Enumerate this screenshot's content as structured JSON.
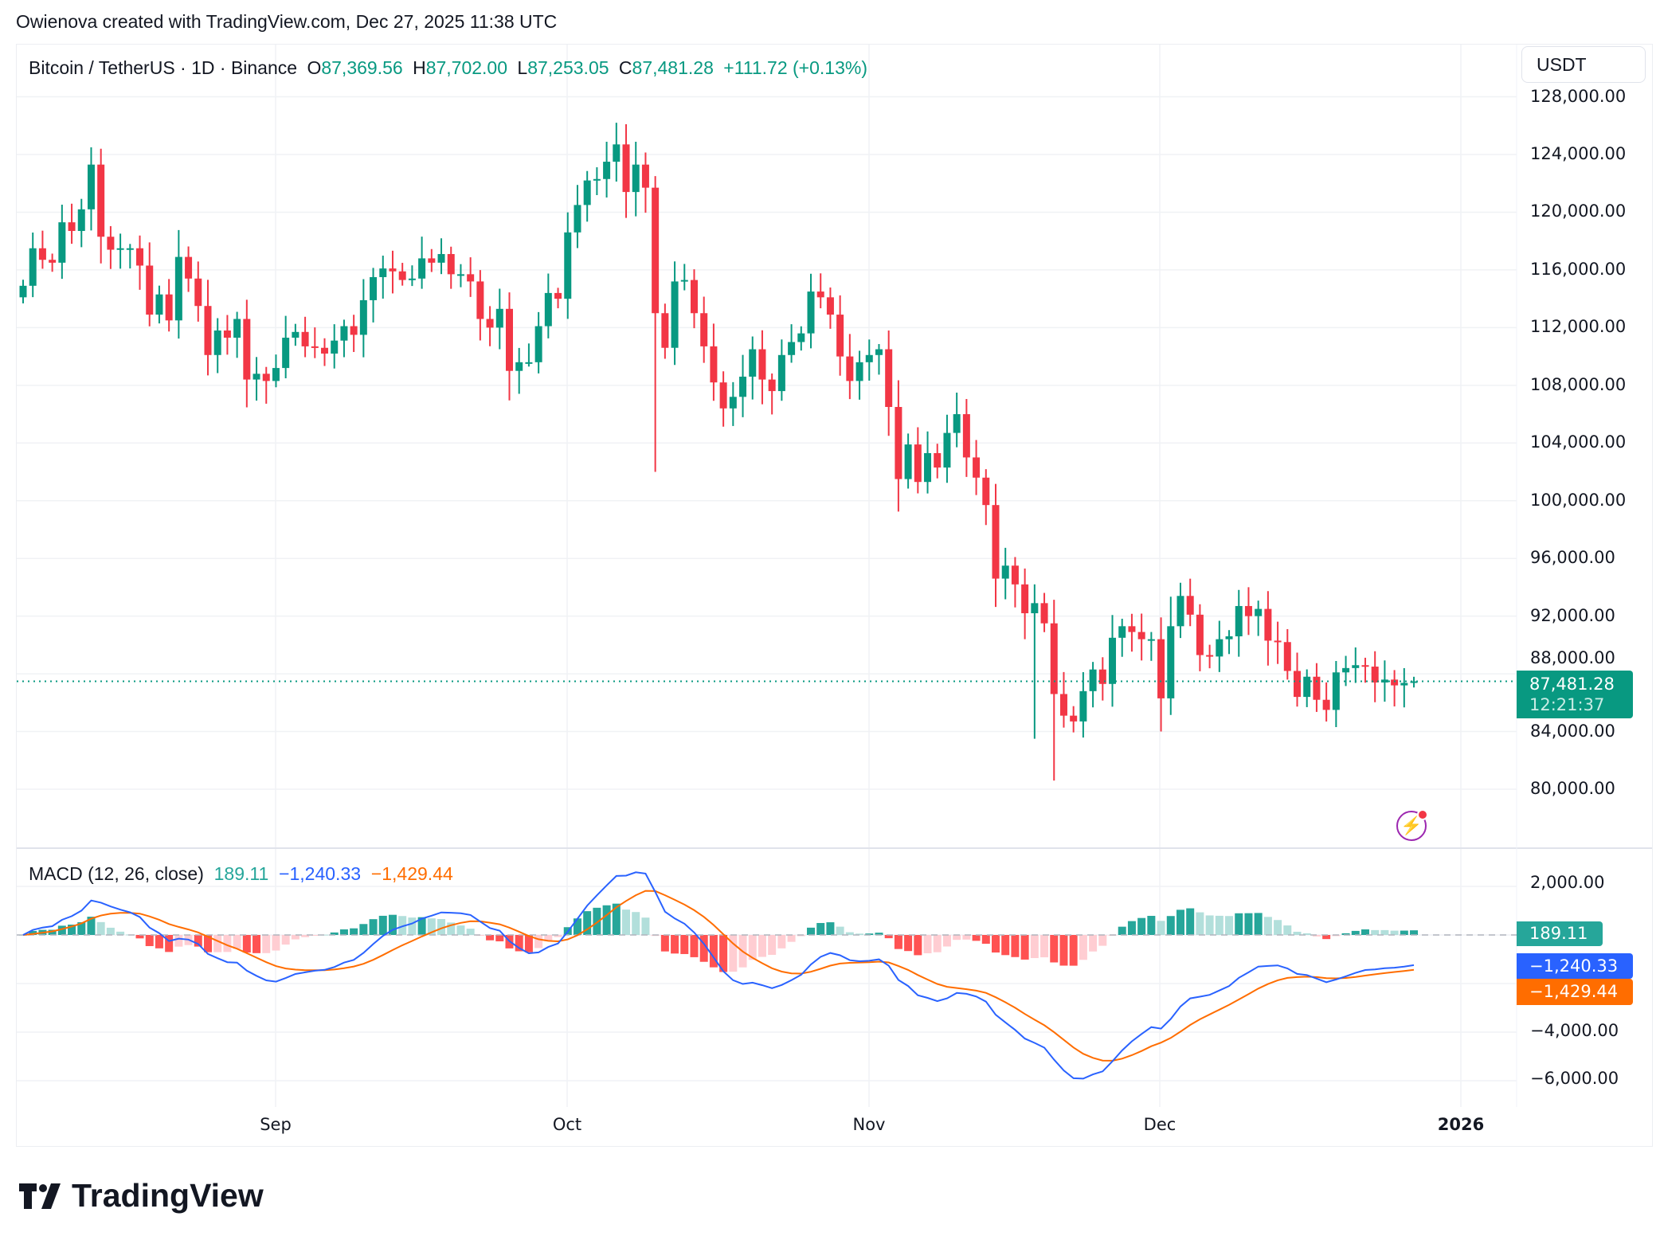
{
  "credit": "Owienova created with TradingView.com, Dec 27, 2025 11:38 UTC",
  "symbol": {
    "title": "Bitcoin / TetherUS · 1D · Binance",
    "o_label": "O",
    "o": "87,369.56",
    "h_label": "H",
    "h": "87,702.00",
    "l_label": "L",
    "l": "87,253.05",
    "c_label": "C",
    "c": "87,481.28",
    "change": "+111.72 (+0.13%)"
  },
  "currency_button": "USDT",
  "price_axis": [
    "128,000.00",
    "124,000.00",
    "120,000.00",
    "116,000.00",
    "112,000.00",
    "108,000.00",
    "104,000.00",
    "100,000.00",
    "96,000.00",
    "92,000.00",
    "88,000.00",
    "84,000.00",
    "80,000.00"
  ],
  "last_price": {
    "value": "87,481.28",
    "countdown": "12:21:37"
  },
  "macd": {
    "title": "MACD (12, 26, close)",
    "hist": "189.11",
    "macd": "−1,240.33",
    "signal": "−1,429.44",
    "axis": [
      "2,000.00",
      "−4,000.00",
      "−6,000.00"
    ]
  },
  "time_axis": [
    "Sep",
    "Oct",
    "Nov",
    "Dec",
    "2026"
  ],
  "logo": "TradingView",
  "colors": {
    "up": "#089981",
    "down": "#F23645",
    "macd": "#2962FF",
    "signal": "#FF6D00",
    "hist_up": "#26A69A",
    "hist_up_weak": "#B2DFDB",
    "hist_down": "#FF5252",
    "hist_down_weak": "#FFCDD2"
  },
  "chart_data": {
    "type": "candlestick",
    "start_date": "2025-08-06",
    "interval": "1D",
    "first_open": 114100,
    "close": [
      114.9,
      117.5,
      116.7,
      116.5,
      119.3,
      118.7,
      120.2,
      123.3,
      118.3,
      117.4,
      117.5,
      117.5,
      116.3,
      112.9,
      114.3,
      112.5,
      116.9,
      115.4,
      113.5,
      110.1,
      111.8,
      111.3,
      112.6,
      108.4,
      108.8,
      108.3,
      109.2,
      111.3,
      111.7,
      110.7,
      110.6,
      110.2,
      111.1,
      112.1,
      111.5,
      113.9,
      115.5,
      116.1,
      115.9,
      115.3,
      115.4,
      116.8,
      116.5,
      117.1,
      115.7,
      115.7,
      115.2,
      112.6,
      112.0,
      113.3,
      109.0,
      109.6,
      109.6,
      112.1,
      114.4,
      114.0,
      118.6,
      120.5,
      122.2,
      122.3,
      123.5,
      124.7,
      121.4,
      123.3,
      121.7,
      113.0,
      110.6,
      115.2,
      115.3,
      113.0,
      110.7,
      108.2,
      106.4,
      107.2,
      108.6,
      110.5,
      108.4,
      107.6,
      110.1,
      111.0,
      111.6,
      114.5,
      114.1,
      112.9,
      110.0,
      108.3,
      109.6,
      110.1,
      110.5,
      106.5,
      101.5,
      103.9,
      101.3,
      103.3,
      102.3,
      104.7,
      106.0,
      103.0,
      101.6,
      99.7,
      94.6,
      95.5,
      94.2,
      92.2,
      92.9,
      91.5,
      86.6,
      85.1,
      84.7,
      86.8,
      88.3,
      87.3,
      90.5,
      91.3,
      90.9,
      90.4,
      90.4,
      86.3,
      91.3,
      93.4,
      92.1,
      89.3,
      89.2,
      90.4,
      90.6,
      92.7,
      92.0,
      92.5,
      90.3,
      90.2,
      88.2,
      86.4,
      87.8,
      86.2,
      85.5,
      88.1,
      88.4,
      88.6,
      88.5,
      87.4,
      87.6,
      87.2,
      87.37,
      87.48
    ],
    "close_unit": "thousand USDT",
    "notable_highs": {
      "7": 124.5,
      "8": 124.4,
      "61": 126.2,
      "65": 122.5
    },
    "notable_lows": {
      "65": 102.0,
      "106": 80.6,
      "117": 84.0,
      "104": 83.5
    },
    "y_range": [
      76000,
      128500
    ],
    "macd_range": [
      -7000,
      3000
    ]
  }
}
